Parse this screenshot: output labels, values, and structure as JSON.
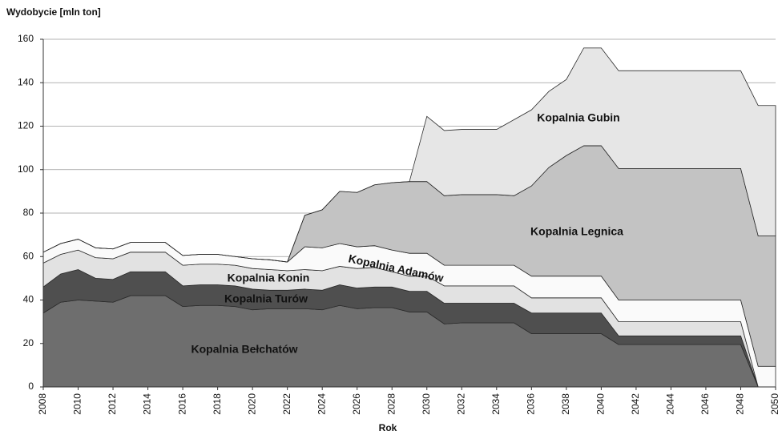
{
  "chart_data": {
    "type": "stacked_area",
    "title": "Wydobycie [mln ton]",
    "x_label": "Rok",
    "x": [
      2008,
      2009,
      2010,
      2011,
      2012,
      2013,
      2014,
      2015,
      2016,
      2017,
      2018,
      2019,
      2020,
      2021,
      2022,
      2023,
      2024,
      2025,
      2026,
      2027,
      2028,
      2029,
      2030,
      2031,
      2032,
      2033,
      2034,
      2035,
      2036,
      2037,
      2038,
      2039,
      2040,
      2041,
      2042,
      2043,
      2044,
      2045,
      2046,
      2047,
      2048,
      2049,
      2050
    ],
    "xlim": [
      2008,
      2050
    ],
    "xticks": [
      2008,
      2010,
      2012,
      2014,
      2016,
      2018,
      2020,
      2022,
      2024,
      2026,
      2028,
      2030,
      2032,
      2034,
      2036,
      2038,
      2040,
      2042,
      2044,
      2046,
      2048,
      2050
    ],
    "ylim": [
      0,
      160
    ],
    "yticks": [
      0,
      20,
      40,
      60,
      80,
      100,
      120,
      140,
      160
    ],
    "grid": true,
    "series": [
      {
        "name": "Kopalnia Bełchatów",
        "color": "#6e6e6e",
        "values": [
          34,
          39,
          40,
          39.5,
          39,
          42,
          42,
          42,
          37,
          37.5,
          37.5,
          37,
          35.5,
          36,
          36,
          36,
          35.5,
          37.5,
          36,
          36.5,
          36.5,
          34.5,
          34.5,
          29,
          29.5,
          29.5,
          29.5,
          29.5,
          24.5,
          24.5,
          24.5,
          24.5,
          24.5,
          19.5,
          19.5,
          19.5,
          19.5,
          19.5,
          19.5,
          19.5,
          19.5,
          0,
          0
        ]
      },
      {
        "name": "Kopalnia Turów",
        "color": "#4f4f4f",
        "values": [
          12,
          13,
          14,
          10.5,
          10.5,
          11,
          11,
          11,
          9.5,
          9.5,
          9.5,
          9.5,
          9.5,
          8.5,
          8.5,
          9,
          9,
          9.5,
          9.5,
          9.5,
          9.5,
          9.5,
          9.5,
          9.5,
          9,
          9,
          9,
          9,
          9.5,
          9.5,
          9.5,
          9.5,
          9.5,
          4,
          4,
          4,
          4,
          4,
          4,
          4,
          4,
          0,
          0
        ]
      },
      {
        "name": "Kopalnia Konin",
        "color": "#e2e2e2",
        "values": [
          11,
          9,
          9,
          9.5,
          9.5,
          9,
          9,
          9,
          9.5,
          9.5,
          9.5,
          9.5,
          9.5,
          9.5,
          9,
          9,
          9,
          8.5,
          9,
          9,
          7,
          7,
          7,
          8,
          8,
          8,
          8,
          8,
          7,
          7,
          7,
          7,
          7,
          6.5,
          6.5,
          6.5,
          6.5,
          6.5,
          6.5,
          6.5,
          6.5,
          0,
          0
        ]
      },
      {
        "name": "Kopalnia Adamów",
        "color": "#fafafa",
        "values": [
          5,
          5,
          5,
          4.5,
          4.5,
          4.5,
          4.5,
          4.5,
          4.5,
          4.5,
          4.5,
          4,
          4.5,
          4.5,
          4,
          10.5,
          10.5,
          10.5,
          10,
          10,
          10,
          10.5,
          10.5,
          9.5,
          9.5,
          9.5,
          9.5,
          9.5,
          10,
          10,
          10,
          10,
          10,
          10,
          10,
          10,
          10,
          10,
          10,
          10,
          10,
          9.5,
          9.5
        ]
      },
      {
        "name": "Kopalnia Legnica",
        "color": "#c3c3c3",
        "values": [
          0,
          0,
          0,
          0,
          0,
          0,
          0,
          0,
          0,
          0,
          0,
          0,
          0,
          0,
          0,
          14.5,
          17.5,
          24,
          25,
          28,
          31,
          33,
          33,
          32,
          32.5,
          32.5,
          32.5,
          32,
          41.5,
          50,
          55.5,
          60,
          60,
          60.5,
          60.5,
          60.5,
          60.5,
          60.5,
          60.5,
          60.5,
          60.5,
          60,
          60
        ]
      },
      {
        "name": "Kopalnia Gubin",
        "color": "#e6e6e6",
        "values": [
          0,
          0,
          0,
          0,
          0,
          0,
          0,
          0,
          0,
          0,
          0,
          0,
          0,
          0,
          0,
          0,
          0,
          0,
          0,
          0,
          0,
          0,
          30,
          30,
          30,
          30,
          30,
          35,
          35,
          35,
          35,
          45,
          45,
          45,
          45,
          45,
          45,
          45,
          45,
          45,
          45,
          60,
          60
        ]
      }
    ]
  }
}
